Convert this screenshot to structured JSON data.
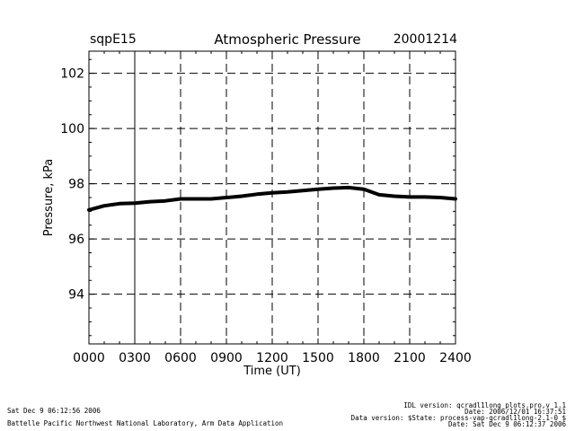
{
  "header": {
    "station": "sqpE15",
    "title": "Atmospheric Pressure",
    "date": "20001214"
  },
  "footer": {
    "generated": "Sat Dec  9 06:12:56 2006",
    "lab": "Battelle Pacific Northwest National Laboratory, Arm Data Application",
    "meta_lines": [
      "IDL version: qcradl1long_plots.pro,v 1.1",
      "Date: 2006/12/01 16:37:51",
      "Data version: $State: process-vap-qcradl1long-2.1-0 $",
      "Date: Sat Dec  9 06:12:37 2006"
    ]
  },
  "chart_data": {
    "type": "line",
    "title": "Atmospheric Pressure",
    "xlabel": "Time (UT)",
    "ylabel": "Pressure, kPa",
    "xlim": [
      0,
      2400
    ],
    "ylim": [
      92.2,
      102.8
    ],
    "x_ticks": [
      0,
      300,
      600,
      900,
      1200,
      1500,
      1800,
      2100,
      2400
    ],
    "x_tick_labels": [
      "0000",
      "0300",
      "0600",
      "0900",
      "1200",
      "1500",
      "1800",
      "2100",
      "2400"
    ],
    "y_ticks": [
      94,
      96,
      98,
      100,
      102
    ],
    "y_tick_labels": [
      "94",
      "96",
      "98",
      "100",
      "102"
    ],
    "grid": true,
    "series": [
      {
        "x": [
          0,
          100,
          200,
          300,
          400,
          500,
          600,
          700,
          800,
          900,
          1000,
          1100,
          1200,
          1300,
          1400,
          1500,
          1600,
          1700,
          1800,
          1900,
          2000,
          2100,
          2200,
          2300,
          2400
        ],
        "y": [
          97.05,
          97.2,
          97.28,
          97.3,
          97.35,
          97.38,
          97.45,
          97.45,
          97.45,
          97.5,
          97.55,
          97.62,
          97.67,
          97.7,
          97.75,
          97.8,
          97.84,
          97.86,
          97.8,
          97.6,
          97.55,
          97.52,
          97.52,
          97.5,
          97.45
        ]
      }
    ]
  }
}
